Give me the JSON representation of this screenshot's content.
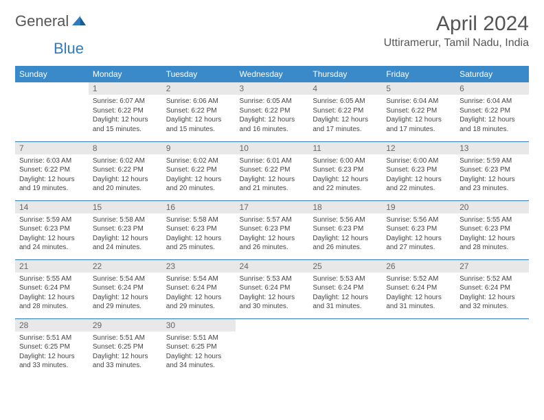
{
  "brand": {
    "part1": "General",
    "part2": "Blue"
  },
  "title": "April 2024",
  "location": "Uttiramerur, Tamil Nadu, India",
  "colors": {
    "header_bg": "#3a8ac9",
    "header_text": "#ffffff",
    "daynum_bg": "#e8e8e8",
    "daynum_text": "#666666",
    "rule": "#2f7bbf",
    "body_text": "#444444",
    "title_text": "#555555",
    "logo_blue": "#2f7bbf"
  },
  "typography": {
    "title_size": 30,
    "location_size": 16,
    "header_size": 12,
    "daynum_size": 12,
    "body_size": 10
  },
  "weekdays": [
    "Sunday",
    "Monday",
    "Tuesday",
    "Wednesday",
    "Thursday",
    "Friday",
    "Saturday"
  ],
  "weeks": [
    [
      null,
      {
        "n": "1",
        "sr": "6:07 AM",
        "ss": "6:22 PM",
        "dl": "12 hours and 15 minutes."
      },
      {
        "n": "2",
        "sr": "6:06 AM",
        "ss": "6:22 PM",
        "dl": "12 hours and 15 minutes."
      },
      {
        "n": "3",
        "sr": "6:05 AM",
        "ss": "6:22 PM",
        "dl": "12 hours and 16 minutes."
      },
      {
        "n": "4",
        "sr": "6:05 AM",
        "ss": "6:22 PM",
        "dl": "12 hours and 17 minutes."
      },
      {
        "n": "5",
        "sr": "6:04 AM",
        "ss": "6:22 PM",
        "dl": "12 hours and 17 minutes."
      },
      {
        "n": "6",
        "sr": "6:04 AM",
        "ss": "6:22 PM",
        "dl": "12 hours and 18 minutes."
      }
    ],
    [
      {
        "n": "7",
        "sr": "6:03 AM",
        "ss": "6:22 PM",
        "dl": "12 hours and 19 minutes."
      },
      {
        "n": "8",
        "sr": "6:02 AM",
        "ss": "6:22 PM",
        "dl": "12 hours and 20 minutes."
      },
      {
        "n": "9",
        "sr": "6:02 AM",
        "ss": "6:22 PM",
        "dl": "12 hours and 20 minutes."
      },
      {
        "n": "10",
        "sr": "6:01 AM",
        "ss": "6:22 PM",
        "dl": "12 hours and 21 minutes."
      },
      {
        "n": "11",
        "sr": "6:00 AM",
        "ss": "6:23 PM",
        "dl": "12 hours and 22 minutes."
      },
      {
        "n": "12",
        "sr": "6:00 AM",
        "ss": "6:23 PM",
        "dl": "12 hours and 22 minutes."
      },
      {
        "n": "13",
        "sr": "5:59 AM",
        "ss": "6:23 PM",
        "dl": "12 hours and 23 minutes."
      }
    ],
    [
      {
        "n": "14",
        "sr": "5:59 AM",
        "ss": "6:23 PM",
        "dl": "12 hours and 24 minutes."
      },
      {
        "n": "15",
        "sr": "5:58 AM",
        "ss": "6:23 PM",
        "dl": "12 hours and 24 minutes."
      },
      {
        "n": "16",
        "sr": "5:58 AM",
        "ss": "6:23 PM",
        "dl": "12 hours and 25 minutes."
      },
      {
        "n": "17",
        "sr": "5:57 AM",
        "ss": "6:23 PM",
        "dl": "12 hours and 26 minutes."
      },
      {
        "n": "18",
        "sr": "5:56 AM",
        "ss": "6:23 PM",
        "dl": "12 hours and 26 minutes."
      },
      {
        "n": "19",
        "sr": "5:56 AM",
        "ss": "6:23 PM",
        "dl": "12 hours and 27 minutes."
      },
      {
        "n": "20",
        "sr": "5:55 AM",
        "ss": "6:23 PM",
        "dl": "12 hours and 28 minutes."
      }
    ],
    [
      {
        "n": "21",
        "sr": "5:55 AM",
        "ss": "6:24 PM",
        "dl": "12 hours and 28 minutes."
      },
      {
        "n": "22",
        "sr": "5:54 AM",
        "ss": "6:24 PM",
        "dl": "12 hours and 29 minutes."
      },
      {
        "n": "23",
        "sr": "5:54 AM",
        "ss": "6:24 PM",
        "dl": "12 hours and 29 minutes."
      },
      {
        "n": "24",
        "sr": "5:53 AM",
        "ss": "6:24 PM",
        "dl": "12 hours and 30 minutes."
      },
      {
        "n": "25",
        "sr": "5:53 AM",
        "ss": "6:24 PM",
        "dl": "12 hours and 31 minutes."
      },
      {
        "n": "26",
        "sr": "5:52 AM",
        "ss": "6:24 PM",
        "dl": "12 hours and 31 minutes."
      },
      {
        "n": "27",
        "sr": "5:52 AM",
        "ss": "6:24 PM",
        "dl": "12 hours and 32 minutes."
      }
    ],
    [
      {
        "n": "28",
        "sr": "5:51 AM",
        "ss": "6:25 PM",
        "dl": "12 hours and 33 minutes."
      },
      {
        "n": "29",
        "sr": "5:51 AM",
        "ss": "6:25 PM",
        "dl": "12 hours and 33 minutes."
      },
      {
        "n": "30",
        "sr": "5:51 AM",
        "ss": "6:25 PM",
        "dl": "12 hours and 34 minutes."
      },
      null,
      null,
      null,
      null
    ]
  ],
  "labels": {
    "sunrise": "Sunrise: ",
    "sunset": "Sunset: ",
    "daylight": "Daylight: "
  }
}
